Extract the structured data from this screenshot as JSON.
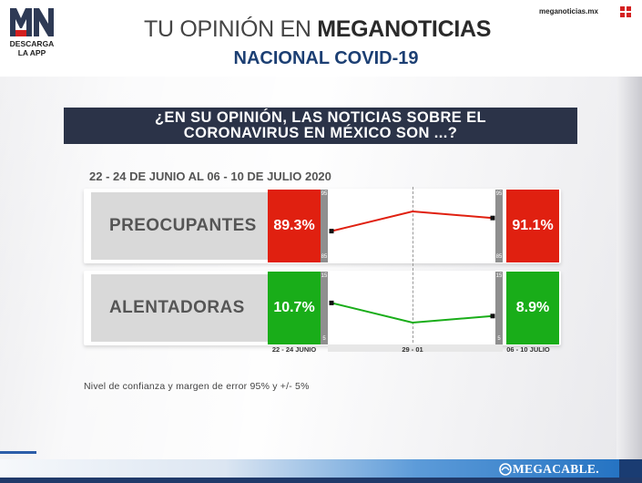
{
  "brand": {
    "logo_letters": "MN",
    "logo_caption_line1": "DESCARGA",
    "logo_caption_line2": "LA APP",
    "website": "meganoticias.mx",
    "footer_brand": "MEGACABLE."
  },
  "header": {
    "title_part1": "TU OPINIÓN EN ",
    "title_part2": "MEGANOTICIAS",
    "subtitle": "NACIONAL COVID-19"
  },
  "question": {
    "line1": "¿EN SU OPINIÓN, LAS NOTICIAS SOBRE EL",
    "line2": "CORONAVIRUS EN MÉXICO SON ...?"
  },
  "period": "22 - 24 DE JUNIO AL 06 - 10 DE JULIO 2020",
  "note": "Nivel de confianza y margen de error 95% y +/- 5%",
  "chart_data": {
    "type": "line",
    "x": [
      "22 - 24 JUNIO",
      "29 - 01",
      "06 - 10 JULIO"
    ],
    "series": [
      {
        "name": "PREOCUPANTES",
        "values": [
          89.3,
          92,
          91.1
        ],
        "start_label": "89.3%",
        "end_label": "91.1%",
        "color": "#e02010",
        "scale_top": "95",
        "scale_bottom": "85",
        "range": [
          85,
          95
        ]
      },
      {
        "name": "ALENTADORAS",
        "values": [
          10.7,
          8,
          8.9
        ],
        "start_label": "10.7%",
        "end_label": "8.9%",
        "color": "#19ad19",
        "scale_top": "15",
        "scale_bottom": "5",
        "range": [
          5,
          15
        ]
      }
    ]
  },
  "colors": {
    "question_bg": "#2b3348",
    "subtitle": "#1c3f73",
    "preocupantes": "#e02010",
    "alentadoras": "#19ad19"
  }
}
